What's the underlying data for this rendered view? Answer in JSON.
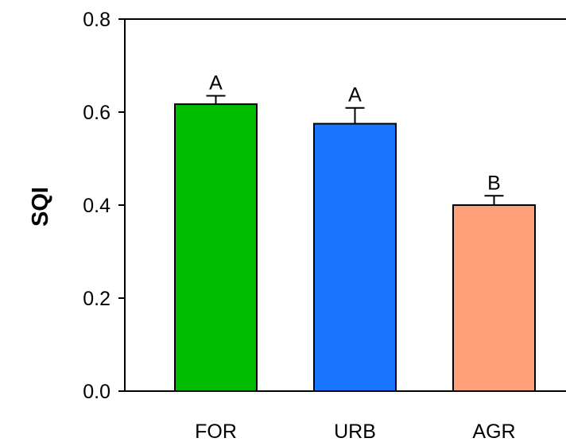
{
  "chart_data": {
    "type": "bar",
    "title": "",
    "xlabel": "",
    "ylabel": "SQI",
    "ylim": [
      0,
      0.8
    ],
    "yticks": [
      "0.0",
      "0.2",
      "0.4",
      "0.6",
      "0.8"
    ],
    "ytick_values": [
      0,
      0.2,
      0.4,
      0.6,
      0.8
    ],
    "grid": false,
    "categories": [
      "FOR",
      "URB",
      "AGR"
    ],
    "values": [
      0.617,
      0.575,
      0.4
    ],
    "errors": [
      0.018,
      0.034,
      0.02
    ],
    "significance_letters": [
      "A",
      "A",
      "B"
    ],
    "colors": [
      "#00bb00",
      "#1a75ff",
      "#ffa07a"
    ],
    "edge_color": "#000000"
  }
}
